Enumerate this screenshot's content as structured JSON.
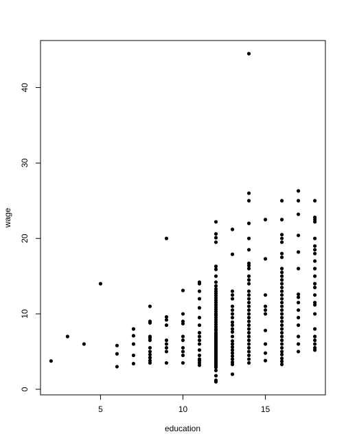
{
  "chart_data": {
    "type": "scatter",
    "xlabel": "education",
    "ylabel": "wage",
    "xlim": [
      1.36,
      18.64
    ],
    "ylim": [
      -0.74,
      46.24
    ],
    "xticks": [
      5,
      10,
      15
    ],
    "yticks": [
      0,
      10,
      20,
      30,
      40
    ],
    "color": "#000000",
    "x": [
      2,
      3,
      4,
      5,
      6,
      6,
      6,
      7,
      7,
      7,
      7,
      7,
      8,
      8,
      8,
      8,
      8,
      8,
      8,
      8,
      8,
      8,
      8,
      8,
      9,
      9,
      9,
      9,
      9,
      9,
      9,
      9,
      9,
      10,
      10,
      10,
      10,
      10,
      10,
      10,
      10,
      10,
      10,
      11,
      11,
      11,
      11,
      11,
      11,
      11,
      11,
      11,
      11,
      11,
      11,
      11,
      11,
      11,
      11,
      11,
      12,
      12,
      12,
      12,
      12,
      12,
      12,
      12,
      12,
      12,
      12,
      12,
      12,
      12,
      12,
      12,
      12,
      12,
      12,
      12,
      12,
      12,
      12,
      12,
      12,
      12,
      12,
      12,
      12,
      12,
      12,
      12,
      12,
      12,
      12,
      12,
      12,
      12,
      12,
      12,
      12,
      12,
      12,
      12,
      12,
      12,
      12,
      12,
      12,
      12,
      12,
      12,
      12,
      12,
      12,
      12,
      12,
      13,
      13,
      13,
      13,
      13,
      13,
      13,
      13,
      13,
      13,
      13,
      13,
      13,
      13,
      13,
      13,
      13,
      13,
      13,
      13,
      13,
      13,
      13,
      13,
      14,
      14,
      14,
      14,
      14,
      14,
      14,
      14,
      14,
      14,
      14,
      14,
      14,
      14,
      14,
      14,
      14,
      14,
      14,
      14,
      14,
      14,
      14,
      14,
      14,
      14,
      14,
      14,
      14,
      14,
      14,
      14,
      15,
      15,
      15,
      15,
      15,
      15,
      15,
      15,
      15,
      15,
      16,
      16,
      16,
      16,
      16,
      16,
      16,
      16,
      16,
      16,
      16,
      16,
      16,
      16,
      16,
      16,
      16,
      16,
      16,
      16,
      16,
      16,
      16,
      16,
      16,
      16,
      16,
      16,
      16,
      16,
      16,
      16,
      16,
      16,
      17,
      17,
      17,
      17,
      17,
      17,
      17,
      17,
      17,
      17,
      17,
      17,
      17,
      17,
      17,
      18,
      18,
      18,
      18,
      18,
      18,
      18,
      18,
      18,
      18,
      18,
      18,
      18,
      18,
      18,
      18,
      18,
      18,
      18,
      18,
      18,
      18,
      18
    ],
    "values": [
      3.75,
      7,
      6,
      14,
      3,
      4.7,
      5.8,
      3.4,
      4.5,
      6,
      7.1,
      8,
      3.5,
      3.8,
      4.2,
      4.6,
      5,
      5.5,
      6.5,
      6.8,
      7,
      8.8,
      9,
      11,
      3.5,
      5,
      5.5,
      6,
      6.5,
      8.5,
      9.2,
      9.6,
      20,
      3.5,
      4.5,
      5,
      5.5,
      6.5,
      7,
      8.7,
      9,
      10,
      13.1,
      3.2,
      3.5,
      3.8,
      4,
      4.5,
      5.2,
      6,
      6.5,
      7,
      7.5,
      8.5,
      9.5,
      10.8,
      12,
      13,
      14,
      14.2,
      1,
      1.2,
      1.8,
      2.5,
      2.9,
      3.1,
      3.3,
      3.5,
      3.7,
      3.9,
      4.1,
      4.3,
      4.5,
      4.7,
      4.9,
      5.1,
      5.3,
      5.5,
      5.7,
      5.9,
      6.1,
      6.3,
      6.5,
      6.7,
      6.9,
      7.1,
      7.3,
      7.5,
      7.8,
      8,
      8.3,
      8.6,
      8.9,
      9.2,
      9.5,
      9.8,
      10,
      10.3,
      10.6,
      10.9,
      11.2,
      11.5,
      11.8,
      12.1,
      12.4,
      12.7,
      13,
      13.3,
      13.7,
      14.2,
      15,
      15.9,
      16.3,
      19.5,
      20.1,
      20.6,
      22.2,
      2,
      3.3,
      3.6,
      4,
      4.4,
      4.8,
      5.2,
      5.6,
      6,
      6.4,
      7,
      7.6,
      8,
      8.5,
      8.9,
      9.5,
      10,
      10.5,
      11,
      12,
      12.5,
      13,
      17.9,
      21.2,
      3.5,
      4,
      4.5,
      5,
      5.5,
      6,
      6.5,
      7,
      7.5,
      8,
      8.5,
      9,
      9.5,
      10,
      10.5,
      11,
      11.5,
      12,
      12.5,
      13,
      14,
      14.5,
      15,
      16,
      16.4,
      16.7,
      18.5,
      20,
      22,
      25,
      26,
      44.5,
      3.8,
      4.8,
      6,
      7.8,
      10,
      10.5,
      11,
      12.5,
      17.3,
      22.5,
      3.3,
      3.7,
      4.1,
      4.6,
      5,
      5.5,
      6,
      6.5,
      7,
      7.5,
      8,
      8.5,
      9,
      9.5,
      10,
      10.5,
      11,
      11.5,
      12,
      12.5,
      13,
      13.5,
      14,
      14.5,
      15,
      15.5,
      16,
      17.5,
      18,
      19.5,
      20,
      20.5,
      22.5,
      25,
      5,
      6,
      7,
      8.5,
      9.5,
      10.5,
      11.5,
      12.2,
      12.6,
      16,
      18.2,
      20.4,
      23.2,
      25,
      26.3,
      5.2,
      5.5,
      6,
      6.5,
      7,
      8,
      10,
      11.2,
      11.5,
      12.5,
      13.5,
      14,
      15,
      16,
      17,
      18,
      18.5,
      19,
      20,
      22.2,
      22.5,
      22.8,
      25
    ]
  }
}
